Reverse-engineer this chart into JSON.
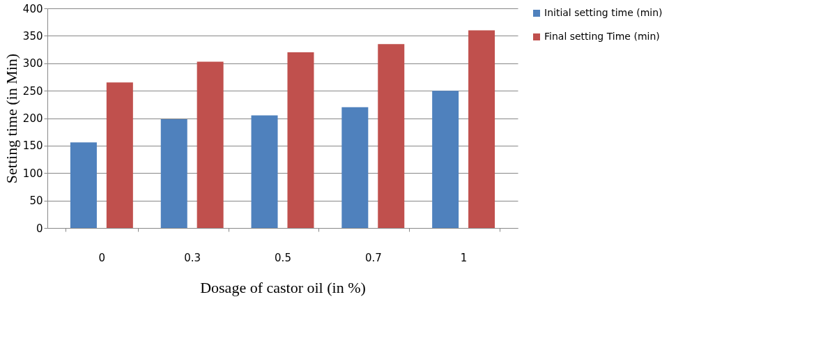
{
  "chart_data": {
    "type": "bar",
    "xlabel": "Dosage of castor oil (in %)",
    "ylabel": "Setting time (in Min)",
    "categories": [
      "0",
      "0.3",
      "0.5",
      "0.7",
      "1"
    ],
    "series": [
      {
        "name": "Initial setting time (min)",
        "color": "#4f81bd",
        "values": [
          156,
          198,
          205,
          220,
          250
        ]
      },
      {
        "name": "Final setting Time (min)",
        "color": "#c0504d",
        "values": [
          265,
          303,
          320,
          335,
          360
        ]
      }
    ],
    "ylim": [
      0,
      400
    ],
    "yticks": [
      0,
      50,
      100,
      150,
      200,
      250,
      300,
      350,
      400
    ],
    "grid": "y",
    "legend": "right"
  }
}
